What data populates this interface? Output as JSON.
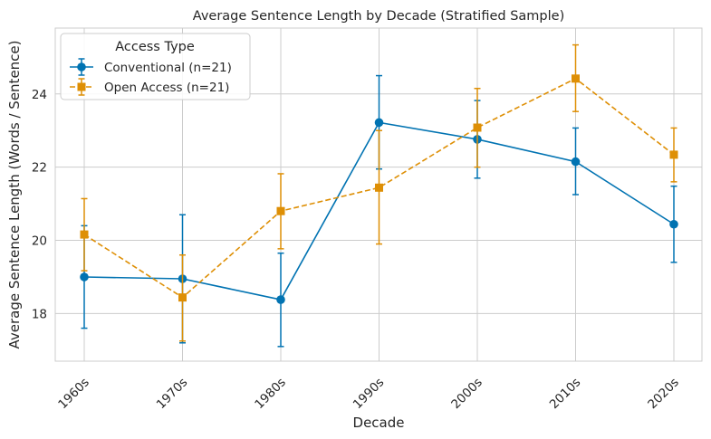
{
  "chart_data": {
    "type": "line",
    "title": "Average Sentence Length by Decade (Stratified Sample)",
    "xlabel": "Decade",
    "ylabel": "Average Sentence Length (Words / Sentence)",
    "categories": [
      "1960s",
      "1970s",
      "1980s",
      "1990s",
      "2000s",
      "2010s",
      "2020s"
    ],
    "ylim": [
      16.7,
      25.8
    ],
    "yticks": [
      18,
      20,
      22,
      24
    ],
    "grid": true,
    "legend": {
      "title": "Access Type",
      "position": "top-left"
    },
    "series": [
      {
        "name": "Conventional (n=21)",
        "color": "#0173b2",
        "line_style": "solid",
        "marker": "circle",
        "values": [
          19.0,
          18.95,
          18.38,
          23.22,
          22.76,
          22.15,
          20.44
        ],
        "error_low": [
          17.6,
          17.2,
          17.1,
          21.95,
          21.7,
          21.25,
          19.4
        ],
        "error_high": [
          20.4,
          20.7,
          19.65,
          24.5,
          23.82,
          23.07,
          21.48
        ]
      },
      {
        "name": "Open Access (n=21)",
        "color": "#de8f05",
        "line_style": "dashed",
        "marker": "square",
        "values": [
          20.16,
          18.44,
          20.8,
          21.44,
          23.08,
          24.42,
          22.34
        ],
        "error_low": [
          19.17,
          17.25,
          19.77,
          19.9,
          22.0,
          23.52,
          21.6
        ],
        "error_high": [
          21.14,
          19.6,
          21.82,
          23.0,
          24.15,
          25.34,
          23.07
        ]
      }
    ]
  }
}
